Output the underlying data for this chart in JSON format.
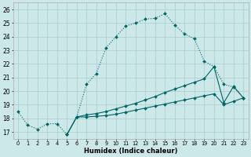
{
  "xlabel": "Humidex (Indice chaleur)",
  "xlim": [
    -0.5,
    23.5
  ],
  "ylim": [
    16.5,
    26.5
  ],
  "yticks": [
    17,
    18,
    19,
    20,
    21,
    22,
    23,
    24,
    25,
    26
  ],
  "xticks": [
    0,
    1,
    2,
    3,
    4,
    5,
    6,
    7,
    8,
    9,
    10,
    11,
    12,
    13,
    14,
    15,
    16,
    17,
    18,
    19,
    20,
    21,
    22,
    23
  ],
  "background_color": "#cce8e8",
  "grid_color": "#aacccc",
  "line_color": "#006666",
  "line1_x": [
    0,
    1,
    2,
    3,
    4,
    5,
    6,
    7,
    8,
    9,
    10,
    11,
    12,
    13,
    14,
    15,
    16,
    17,
    18,
    19,
    20,
    21,
    22,
    23
  ],
  "line1_y": [
    18.5,
    17.5,
    17.2,
    17.6,
    17.6,
    16.8,
    18.1,
    20.5,
    21.3,
    23.2,
    24.0,
    24.8,
    25.0,
    25.3,
    25.35,
    25.7,
    24.85,
    24.2,
    23.85,
    22.2,
    21.8,
    20.5,
    20.3,
    19.5
  ],
  "line2_x": [
    5,
    6,
    7,
    8,
    9,
    10,
    11,
    12,
    13,
    14,
    15,
    16,
    17,
    18,
    19,
    20,
    21,
    22,
    23
  ],
  "line2_y": [
    16.8,
    18.1,
    18.25,
    18.35,
    18.5,
    18.7,
    18.9,
    19.1,
    19.35,
    19.6,
    19.9,
    20.15,
    20.4,
    20.65,
    20.9,
    21.8,
    19.15,
    20.35,
    19.5
  ],
  "line3_x": [
    5,
    6,
    7,
    8,
    9,
    10,
    11,
    12,
    13,
    14,
    15,
    16,
    17,
    18,
    19,
    20,
    21,
    22,
    23
  ],
  "line3_y": [
    16.8,
    18.1,
    18.1,
    18.15,
    18.2,
    18.3,
    18.45,
    18.6,
    18.75,
    18.9,
    19.05,
    19.2,
    19.35,
    19.5,
    19.65,
    19.8,
    19.0,
    19.25,
    19.5
  ]
}
